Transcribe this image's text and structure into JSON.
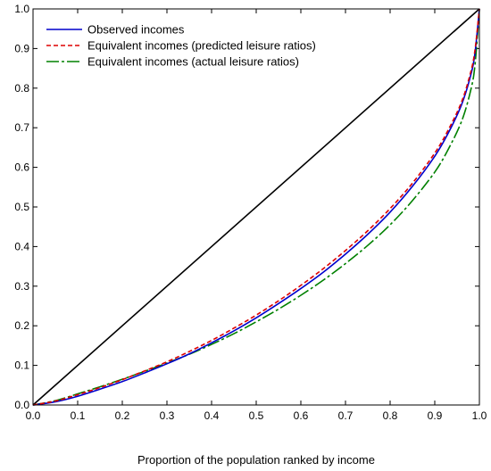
{
  "chart_data": {
    "type": "line",
    "title": "",
    "xlabel": "Proportion of the population ranked by income",
    "ylabel": "",
    "xlim": [
      0,
      1
    ],
    "ylim": [
      0,
      1
    ],
    "xticks": [
      "0.0",
      "0.1",
      "0.2",
      "0.3",
      "0.4",
      "0.5",
      "0.6",
      "0.7",
      "0.8",
      "0.9",
      "1.0"
    ],
    "yticks": [
      "0.0",
      "0.1",
      "0.2",
      "0.3",
      "0.4",
      "0.5",
      "0.6",
      "0.7",
      "0.8",
      "0.9",
      "1.0"
    ],
    "grid": false,
    "legend_position": "top-left",
    "equality_line": {
      "x": [
        0,
        1
      ],
      "y": [
        0,
        1
      ],
      "color": "#000000"
    },
    "x": [
      0,
      0.05,
      0.1,
      0.15,
      0.2,
      0.25,
      0.3,
      0.35,
      0.4,
      0.45,
      0.5,
      0.55,
      0.6,
      0.65,
      0.7,
      0.75,
      0.8,
      0.85,
      0.9,
      0.93,
      0.96,
      0.98,
      0.99,
      1.0
    ],
    "series": [
      {
        "name": "Observed incomes",
        "color": "#0000cc",
        "dash": "solid",
        "values": [
          0,
          0.008,
          0.022,
          0.04,
          0.059,
          0.081,
          0.104,
          0.129,
          0.157,
          0.187,
          0.22,
          0.256,
          0.294,
          0.335,
          0.381,
          0.431,
          0.487,
          0.552,
          0.628,
          0.686,
          0.758,
          0.83,
          0.888,
          1.0
        ]
      },
      {
        "name": "Equivalent incomes (predicted leisure ratios)",
        "color": "#dd0000",
        "dash": "dashed",
        "values": [
          0,
          0.01,
          0.026,
          0.044,
          0.064,
          0.086,
          0.109,
          0.135,
          0.163,
          0.194,
          0.227,
          0.263,
          0.302,
          0.344,
          0.39,
          0.44,
          0.496,
          0.56,
          0.636,
          0.694,
          0.765,
          0.838,
          0.895,
          1.0
        ]
      },
      {
        "name": "Equivalent incomes (actual leisure ratios)",
        "color": "#008000",
        "dash": "longdash",
        "values": [
          0,
          0.011,
          0.028,
          0.046,
          0.065,
          0.085,
          0.106,
          0.128,
          0.153,
          0.18,
          0.21,
          0.242,
          0.277,
          0.315,
          0.357,
          0.403,
          0.455,
          0.516,
          0.588,
          0.645,
          0.716,
          0.792,
          0.857,
          1.0
        ]
      }
    ]
  }
}
